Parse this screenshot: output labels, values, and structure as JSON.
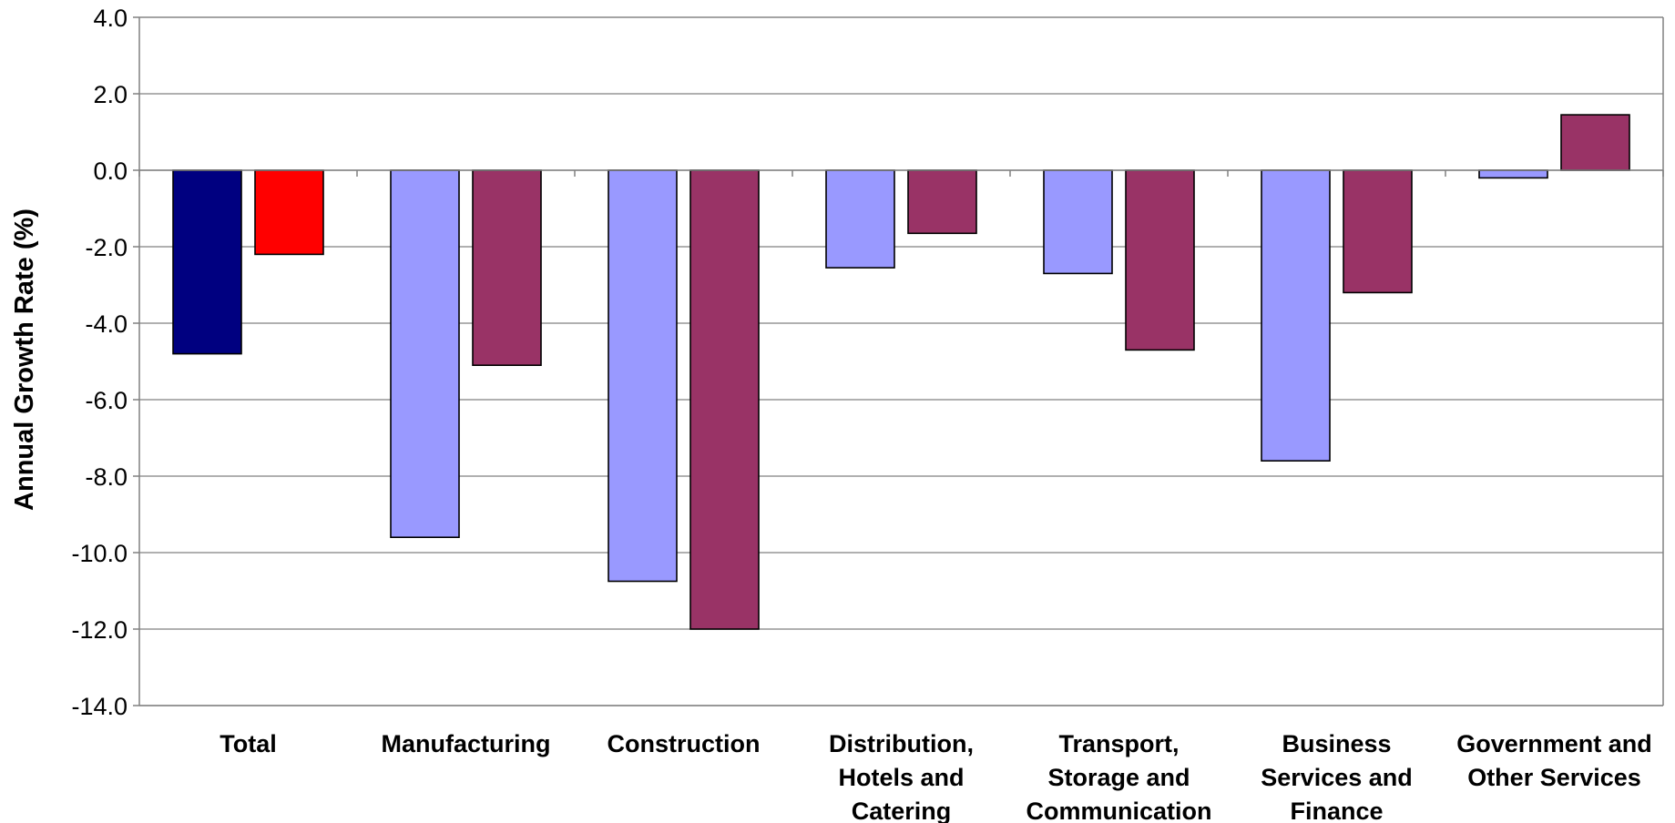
{
  "chart_data": {
    "type": "bar",
    "ylabel": "Annual Growth Rate (%)",
    "ylim": [
      -14,
      4
    ],
    "ytick_step": 2,
    "ytick_labels": [
      "4.0",
      "2.0",
      "0.0",
      "-2.0",
      "-4.0",
      "-6.0",
      "-8.0",
      "-10.0",
      "-12.0",
      "-14.0"
    ],
    "grid": true,
    "legend": "none",
    "categories": [
      "Total",
      "Manufacturing",
      "Construction",
      "Distribution, Hotels and Catering",
      "Transport, Storage and Communication",
      "Business Services and Finance",
      "Government and Other Services"
    ],
    "category_label_lines": [
      [
        "Total"
      ],
      [
        "Manufacturing"
      ],
      [
        "Construction"
      ],
      [
        "Distribution,",
        "Hotels and",
        "Catering"
      ],
      [
        "Transport,",
        "Storage and",
        "Communication"
      ],
      [
        "Business",
        "Services and",
        "Finance"
      ],
      [
        "Government and",
        "Other Services"
      ]
    ],
    "series": [
      {
        "values": [
          -4.8,
          -9.6,
          -10.75,
          -2.55,
          -2.7,
          -7.6,
          -0.2
        ],
        "color": "#9999ff",
        "point_colors": [
          "#000080",
          null,
          null,
          null,
          null,
          null,
          null
        ]
      },
      {
        "values": [
          -2.2,
          -5.1,
          -12.0,
          -1.65,
          -4.7,
          -3.2,
          1.45
        ],
        "color": "#993366",
        "point_colors": [
          "#ff0000",
          null,
          null,
          null,
          null,
          null,
          null
        ]
      }
    ]
  }
}
